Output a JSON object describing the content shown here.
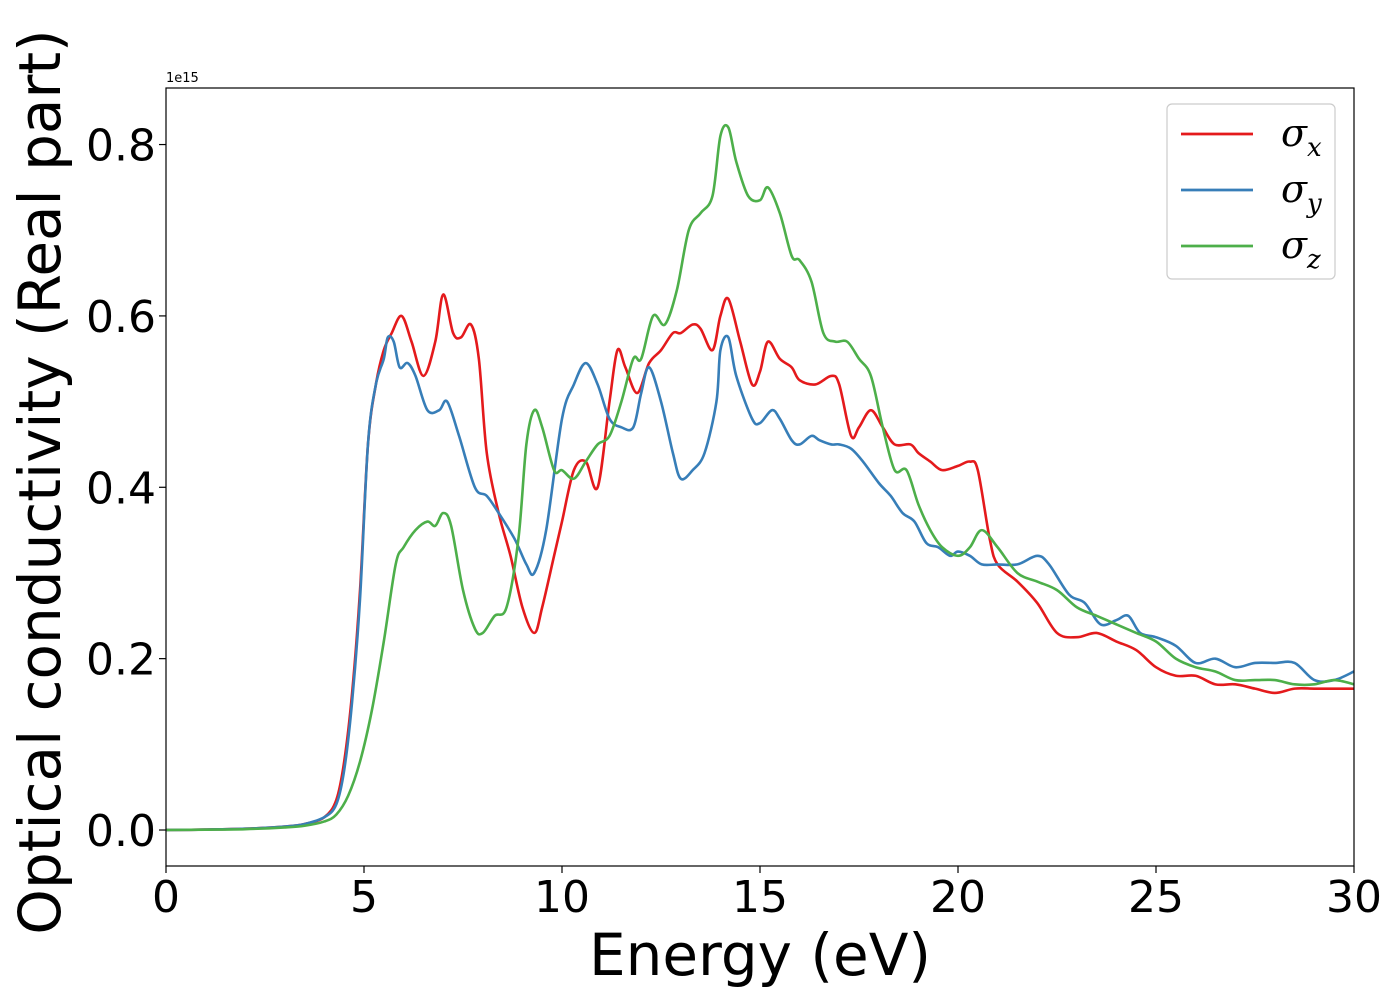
{
  "chart_data": {
    "type": "line",
    "xlabel": "Energy (eV)",
    "ylabel": "Optical conductivity (Real part)",
    "y_offset_label": "1e15",
    "xlim": [
      0,
      30
    ],
    "ylim": [
      -0.042,
      0.866
    ],
    "x_ticks": [
      0,
      5,
      10,
      15,
      20,
      25,
      30
    ],
    "x_tick_labels": [
      "0",
      "5",
      "10",
      "15",
      "20",
      "25",
      "30"
    ],
    "y_ticks": [
      0.0,
      0.2,
      0.4,
      0.6,
      0.8
    ],
    "y_tick_labels": [
      "0.0",
      "0.2",
      "0.4",
      "0.6",
      "0.8"
    ],
    "grid": false,
    "legend_position": "top-right",
    "series": [
      {
        "name": "σ",
        "sub": "x",
        "color": "#e41a1c",
        "x": [
          0,
          1,
          2,
          3,
          3.5,
          4,
          4.3,
          4.5,
          4.7,
          4.9,
          5.1,
          5.3,
          5.5,
          5.7,
          5.95,
          6.2,
          6.5,
          6.8,
          7.0,
          7.25,
          7.45,
          7.7,
          7.9,
          8.1,
          8.4,
          8.7,
          9.0,
          9.3,
          9.5,
          9.8,
          10.0,
          10.3,
          10.6,
          10.9,
          11.2,
          11.4,
          11.6,
          11.9,
          12.2,
          12.5,
          12.8,
          13.0,
          13.3,
          13.5,
          13.8,
          14.0,
          14.2,
          14.5,
          14.8,
          15.0,
          15.2,
          15.5,
          15.8,
          16.0,
          16.4,
          16.8,
          17.0,
          17.3,
          17.5,
          17.8,
          18.1,
          18.4,
          18.8,
          19.0,
          19.3,
          19.6,
          20.0,
          20.3,
          20.5,
          20.8,
          21.0,
          21.5,
          22.0,
          22.5,
          23.0,
          23.5,
          24.0,
          24.5,
          25.0,
          25.5,
          26.0,
          26.5,
          27.0,
          27.5,
          28.0,
          28.5,
          29.0,
          29.5,
          30.0
        ],
        "y": [
          0.0,
          0.0005,
          0.0015,
          0.004,
          0.007,
          0.015,
          0.035,
          0.08,
          0.16,
          0.28,
          0.45,
          0.52,
          0.56,
          0.58,
          0.6,
          0.57,
          0.53,
          0.57,
          0.625,
          0.58,
          0.575,
          0.59,
          0.55,
          0.44,
          0.37,
          0.32,
          0.26,
          0.23,
          0.26,
          0.32,
          0.36,
          0.42,
          0.43,
          0.4,
          0.5,
          0.56,
          0.54,
          0.51,
          0.545,
          0.56,
          0.58,
          0.58,
          0.59,
          0.585,
          0.56,
          0.6,
          0.62,
          0.57,
          0.52,
          0.535,
          0.57,
          0.55,
          0.54,
          0.525,
          0.52,
          0.53,
          0.52,
          0.46,
          0.47,
          0.49,
          0.47,
          0.45,
          0.45,
          0.44,
          0.43,
          0.42,
          0.425,
          0.43,
          0.42,
          0.34,
          0.31,
          0.29,
          0.265,
          0.23,
          0.225,
          0.23,
          0.22,
          0.21,
          0.19,
          0.18,
          0.18,
          0.17,
          0.17,
          0.165,
          0.16,
          0.165,
          0.165,
          0.165,
          0.165
        ]
      },
      {
        "name": "σ",
        "sub": "y",
        "color": "#377eb8",
        "x": [
          0,
          1,
          2,
          3,
          3.5,
          4,
          4.3,
          4.5,
          4.7,
          4.9,
          5.1,
          5.3,
          5.5,
          5.6,
          5.75,
          5.9,
          6.1,
          6.3,
          6.6,
          6.9,
          7.1,
          7.4,
          7.8,
          8.1,
          8.4,
          8.8,
          9.1,
          9.3,
          9.6,
          10.0,
          10.3,
          10.6,
          10.9,
          11.2,
          11.5,
          11.8,
          12.0,
          12.2,
          12.5,
          12.8,
          13.0,
          13.3,
          13.6,
          13.9,
          14.0,
          14.2,
          14.4,
          14.8,
          15.0,
          15.3,
          15.5,
          15.8,
          16.0,
          16.3,
          16.5,
          16.8,
          17.0,
          17.3,
          17.6,
          18.0,
          18.3,
          18.6,
          18.9,
          19.2,
          19.5,
          19.8,
          20.0,
          20.3,
          20.6,
          21.0,
          21.5,
          22.0,
          22.3,
          22.8,
          23.2,
          23.6,
          24.0,
          24.3,
          24.6,
          25.0,
          25.5,
          26.0,
          26.5,
          27.0,
          27.5,
          28.0,
          28.5,
          29.0,
          29.5,
          30.0
        ],
        "y": [
          0.0,
          0.0005,
          0.0015,
          0.004,
          0.007,
          0.015,
          0.03,
          0.07,
          0.15,
          0.27,
          0.45,
          0.52,
          0.55,
          0.575,
          0.57,
          0.54,
          0.545,
          0.53,
          0.49,
          0.49,
          0.5,
          0.46,
          0.4,
          0.39,
          0.37,
          0.34,
          0.31,
          0.3,
          0.35,
          0.48,
          0.52,
          0.545,
          0.52,
          0.48,
          0.47,
          0.47,
          0.51,
          0.54,
          0.5,
          0.44,
          0.41,
          0.42,
          0.44,
          0.5,
          0.56,
          0.575,
          0.53,
          0.48,
          0.475,
          0.49,
          0.48,
          0.455,
          0.45,
          0.46,
          0.455,
          0.45,
          0.45,
          0.445,
          0.43,
          0.405,
          0.39,
          0.37,
          0.36,
          0.335,
          0.33,
          0.32,
          0.325,
          0.32,
          0.31,
          0.31,
          0.31,
          0.32,
          0.31,
          0.275,
          0.265,
          0.24,
          0.245,
          0.25,
          0.23,
          0.225,
          0.215,
          0.195,
          0.2,
          0.19,
          0.195,
          0.195,
          0.195,
          0.175,
          0.175,
          0.185
        ]
      },
      {
        "name": "σ",
        "sub": "z",
        "color": "#4daf4a",
        "x": [
          0,
          1,
          2,
          3,
          3.5,
          4,
          4.3,
          4.6,
          4.9,
          5.2,
          5.5,
          5.8,
          6.0,
          6.3,
          6.6,
          6.8,
          7.0,
          7.2,
          7.5,
          7.8,
          8.0,
          8.3,
          8.6,
          8.9,
          9.1,
          9.3,
          9.5,
          9.8,
          10.0,
          10.3,
          10.6,
          10.9,
          11.2,
          11.5,
          11.8,
          12.0,
          12.3,
          12.6,
          12.9,
          13.2,
          13.5,
          13.8,
          14.0,
          14.2,
          14.4,
          14.7,
          15.0,
          15.2,
          15.5,
          15.8,
          16.0,
          16.3,
          16.6,
          16.9,
          17.2,
          17.5,
          17.8,
          18.1,
          18.4,
          18.7,
          19.0,
          19.3,
          19.6,
          20.0,
          20.3,
          20.6,
          21.0,
          21.5,
          22.0,
          22.5,
          23.0,
          23.5,
          24.0,
          24.5,
          25.0,
          25.5,
          26.0,
          26.5,
          27.0,
          27.5,
          28.0,
          28.5,
          29.0,
          29.5,
          30.0
        ],
        "y": [
          0.0,
          0.0004,
          0.001,
          0.003,
          0.005,
          0.01,
          0.018,
          0.04,
          0.08,
          0.14,
          0.22,
          0.31,
          0.33,
          0.35,
          0.36,
          0.355,
          0.37,
          0.355,
          0.28,
          0.235,
          0.23,
          0.25,
          0.26,
          0.34,
          0.45,
          0.49,
          0.47,
          0.42,
          0.42,
          0.41,
          0.43,
          0.45,
          0.46,
          0.5,
          0.55,
          0.55,
          0.6,
          0.59,
          0.63,
          0.7,
          0.72,
          0.74,
          0.81,
          0.82,
          0.78,
          0.74,
          0.735,
          0.75,
          0.72,
          0.67,
          0.665,
          0.64,
          0.58,
          0.57,
          0.57,
          0.55,
          0.53,
          0.47,
          0.42,
          0.42,
          0.38,
          0.35,
          0.33,
          0.32,
          0.33,
          0.35,
          0.33,
          0.3,
          0.29,
          0.28,
          0.26,
          0.25,
          0.24,
          0.23,
          0.22,
          0.2,
          0.19,
          0.185,
          0.175,
          0.175,
          0.175,
          0.17,
          0.17,
          0.175,
          0.17
        ]
      }
    ]
  }
}
